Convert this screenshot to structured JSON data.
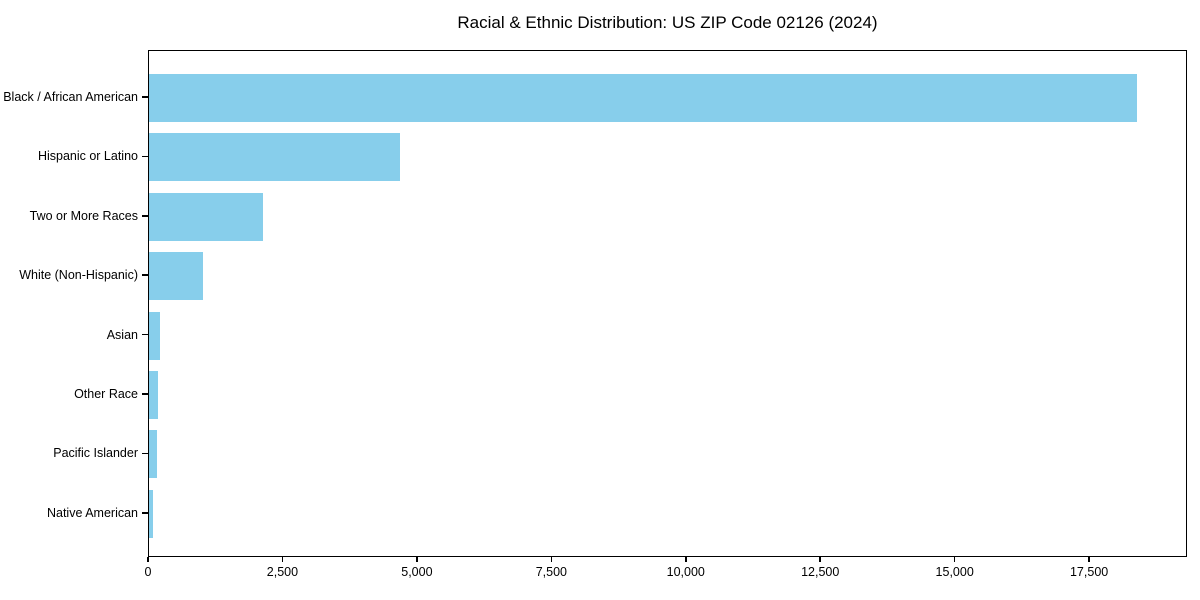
{
  "chart_data": {
    "type": "bar",
    "orientation": "horizontal",
    "title": "Racial & Ethnic Distribution: US ZIP Code 02126 (2024)",
    "categories": [
      "Black / African American",
      "Hispanic or Latino",
      "Two or More Races",
      "White (Non-Hispanic)",
      "Asian",
      "Other Race",
      "Pacific Islander",
      "Native American"
    ],
    "values": [
      18400,
      4670,
      2130,
      1010,
      200,
      170,
      140,
      70
    ],
    "xlabel": "",
    "ylabel": "",
    "xlim": [
      0,
      19320
    ],
    "x_tick_values": [
      0,
      2500,
      5000,
      7500,
      10000,
      12500,
      15000,
      17500
    ],
    "x_tick_labels": [
      "0",
      "2,500",
      "5,000",
      "7,500",
      "10,000",
      "12,500",
      "15,000",
      "17,500"
    ],
    "bar_color": "#87ceeb",
    "grid": false,
    "legend": null,
    "background_color": "#ffffff",
    "spine_color": "#000000"
  }
}
